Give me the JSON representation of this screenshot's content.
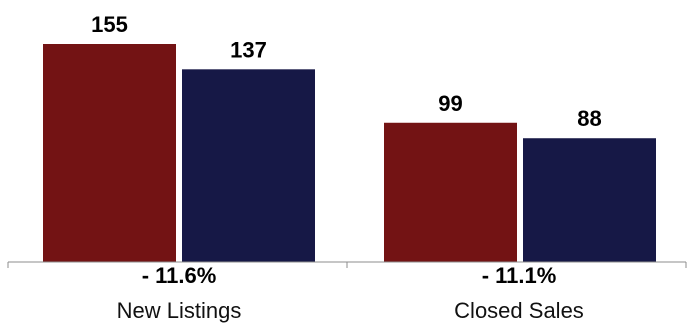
{
  "chart_data": {
    "type": "bar",
    "categories": [
      "New Listings",
      "Closed Sales"
    ],
    "series": [
      {
        "values": [
          155,
          99
        ],
        "color": "#731314"
      },
      {
        "values": [
          137,
          88
        ],
        "color": "#161846"
      }
    ],
    "change_labels": [
      "- 11.6%",
      "- 11.1%"
    ],
    "ylim": [
      0,
      155
    ],
    "grid": false,
    "legend": "none"
  }
}
